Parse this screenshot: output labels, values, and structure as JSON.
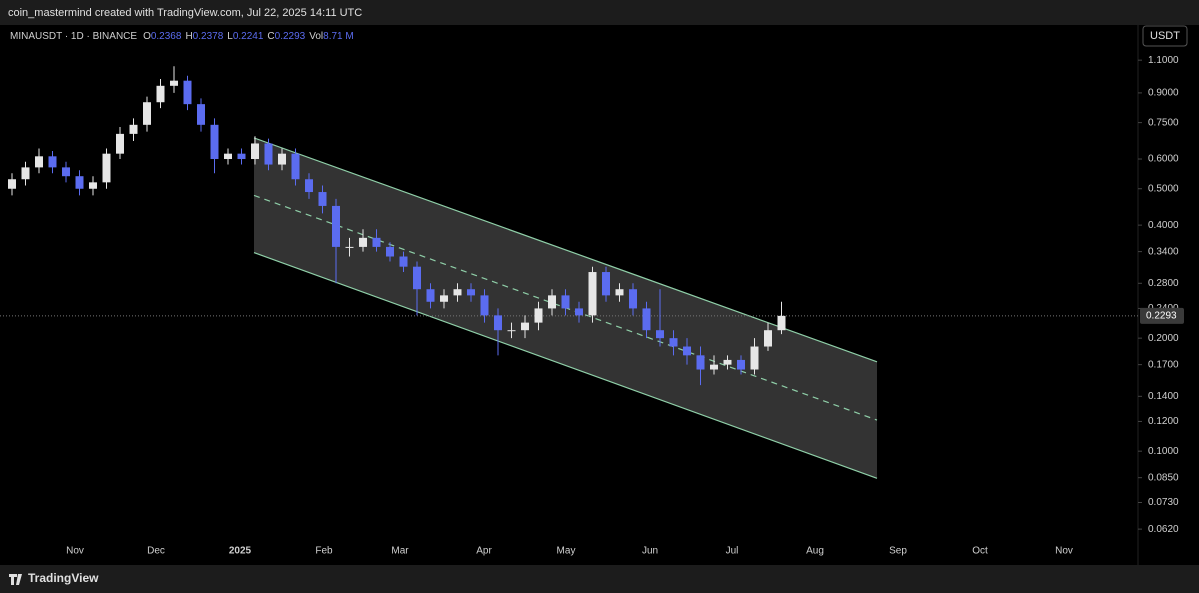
{
  "header": {
    "credit": "coin_mastermind created with TradingView.com, Jul 22, 2025 14:11 UTC",
    "currency_button": "USDT"
  },
  "footer": {
    "brand": "TradingView"
  },
  "chart_data": {
    "type": "candlestick",
    "symbol": "MINAUSDT · 1D · BINANCE",
    "ohlc_legend": [
      {
        "label": "O",
        "value": "0.2368"
      },
      {
        "label": "H",
        "value": "0.2378"
      },
      {
        "label": "L",
        "value": "0.2241"
      },
      {
        "label": "C",
        "value": "0.2293"
      },
      {
        "label": "Vol",
        "value": "8.71 M"
      }
    ],
    "log_scale": true,
    "up_color": "#e6e6e6",
    "down_color": "#5b6cf0",
    "open": [
      0.5,
      0.53,
      0.57,
      0.61,
      0.57,
      0.54,
      0.5,
      0.52,
      0.62,
      0.7,
      0.74,
      0.85,
      0.94,
      0.97,
      0.84,
      0.74,
      0.6,
      0.62,
      0.6,
      0.66,
      0.58,
      0.62,
      0.53,
      0.49,
      0.45,
      0.35,
      0.35,
      0.37,
      0.35,
      0.33,
      0.31,
      0.27,
      0.25,
      0.26,
      0.27,
      0.26,
      0.23,
      0.21,
      0.21,
      0.22,
      0.24,
      0.26,
      0.24,
      0.23,
      0.3,
      0.26,
      0.27,
      0.24,
      0.21,
      0.2,
      0.19,
      0.18,
      0.165,
      0.17,
      0.175,
      0.165,
      0.19,
      0.21
    ],
    "high": [
      0.55,
      0.59,
      0.64,
      0.63,
      0.59,
      0.56,
      0.54,
      0.64,
      0.73,
      0.77,
      0.88,
      0.98,
      1.06,
      1.0,
      0.87,
      0.77,
      0.64,
      0.64,
      0.69,
      0.68,
      0.64,
      0.64,
      0.55,
      0.51,
      0.47,
      0.37,
      0.39,
      0.39,
      0.36,
      0.34,
      0.32,
      0.28,
      0.27,
      0.28,
      0.28,
      0.27,
      0.24,
      0.22,
      0.23,
      0.25,
      0.27,
      0.27,
      0.25,
      0.31,
      0.31,
      0.28,
      0.28,
      0.25,
      0.27,
      0.21,
      0.2,
      0.19,
      0.18,
      0.18,
      0.18,
      0.2,
      0.22,
      0.25
    ],
    "low": [
      0.48,
      0.51,
      0.55,
      0.55,
      0.52,
      0.48,
      0.48,
      0.5,
      0.6,
      0.67,
      0.71,
      0.82,
      0.9,
      0.81,
      0.71,
      0.55,
      0.58,
      0.58,
      0.58,
      0.56,
      0.56,
      0.51,
      0.47,
      0.43,
      0.28,
      0.33,
      0.34,
      0.34,
      0.32,
      0.3,
      0.23,
      0.24,
      0.24,
      0.25,
      0.25,
      0.22,
      0.18,
      0.2,
      0.2,
      0.21,
      0.23,
      0.23,
      0.22,
      0.22,
      0.25,
      0.25,
      0.23,
      0.2,
      0.19,
      0.18,
      0.17,
      0.15,
      0.16,
      0.165,
      0.16,
      0.16,
      0.185,
      0.205
    ],
    "close": [
      0.53,
      0.57,
      0.61,
      0.57,
      0.54,
      0.5,
      0.52,
      0.62,
      0.7,
      0.74,
      0.85,
      0.94,
      0.97,
      0.84,
      0.74,
      0.6,
      0.62,
      0.6,
      0.66,
      0.58,
      0.62,
      0.53,
      0.49,
      0.45,
      0.35,
      0.35,
      0.37,
      0.35,
      0.33,
      0.31,
      0.27,
      0.25,
      0.26,
      0.27,
      0.26,
      0.23,
      0.21,
      0.21,
      0.22,
      0.24,
      0.26,
      0.24,
      0.23,
      0.3,
      0.26,
      0.27,
      0.24,
      0.21,
      0.2,
      0.19,
      0.18,
      0.165,
      0.17,
      0.175,
      0.165,
      0.19,
      0.21,
      0.2293
    ],
    "last_price": 0.2293,
    "channel": {
      "upper": [
        0.683,
        0.173
      ],
      "middle": [
        0.48,
        0.121
      ],
      "lower": [
        0.338,
        0.0847
      ]
    },
    "ylim": [
      0.058,
      1.34
    ],
    "yticks": [
      {
        "value": 1.1,
        "label": "1.1000"
      },
      {
        "value": 0.9,
        "label": "0.9000"
      },
      {
        "value": 0.75,
        "label": "0.7500"
      },
      {
        "value": 0.6,
        "label": "0.6000"
      },
      {
        "value": 0.5,
        "label": "0.5000"
      },
      {
        "value": 0.4,
        "label": "0.4000"
      },
      {
        "value": 0.34,
        "label": "0.3400"
      },
      {
        "value": 0.28,
        "label": "0.2800"
      },
      {
        "value": 0.24,
        "label": "0.2400"
      },
      {
        "value": 0.2,
        "label": "0.2000"
      },
      {
        "value": 0.17,
        "label": "0.1700"
      },
      {
        "value": 0.14,
        "label": "0.1400"
      },
      {
        "value": 0.12,
        "label": "0.1200"
      },
      {
        "value": 0.1,
        "label": "0.1000"
      },
      {
        "value": 0.085,
        "label": "0.0850"
      },
      {
        "value": 0.073,
        "label": "0.0730"
      },
      {
        "value": 0.062,
        "label": "0.0620"
      }
    ],
    "x_labels": [
      "Nov",
      "Dec",
      "2025",
      "Feb",
      "Mar",
      "Apr",
      "May",
      "Jun",
      "Jul",
      "Aug",
      "Sep",
      "Oct",
      "Nov"
    ]
  }
}
